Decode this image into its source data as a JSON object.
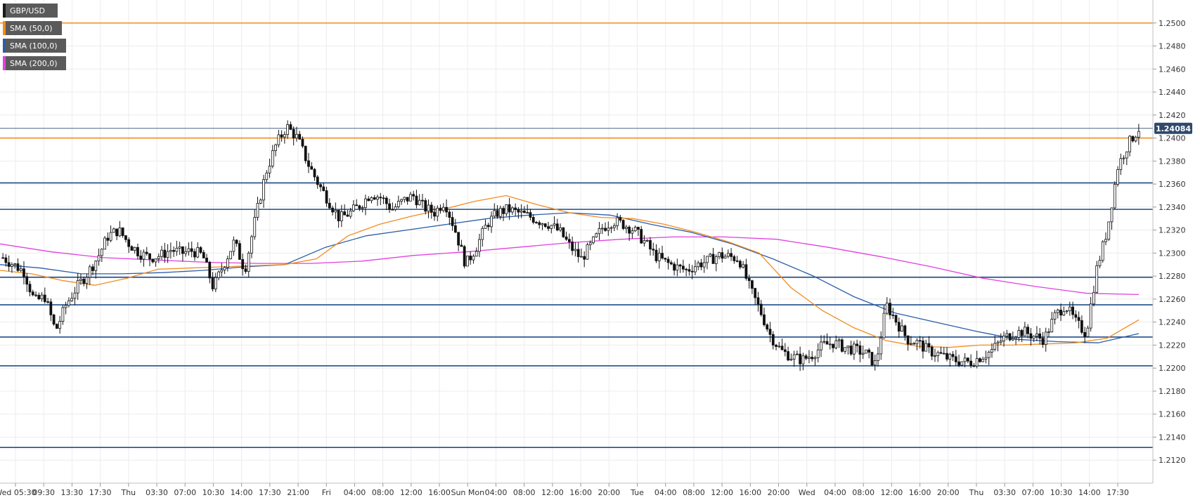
{
  "chart_data": {
    "type": "candlestick",
    "title": "GBP/USD",
    "ylim": [
      1.21,
      1.252
    ],
    "y_ticks": [
      "1.2120",
      "1.2140",
      "1.2160",
      "1.2180",
      "1.2200",
      "1.2220",
      "1.2240",
      "1.2260",
      "1.2280",
      "1.2300",
      "1.2320",
      "1.2340",
      "1.2360",
      "1.2380",
      "1.2400",
      "1.2420",
      "1.2440",
      "1.2460",
      "1.2480",
      "1.2500"
    ],
    "x_ticks": [
      "Wed 05:30",
      "09:30",
      "13:30",
      "17:30",
      "Thu",
      "03:30",
      "07:00",
      "10:30",
      "14:00",
      "17:30",
      "21:00",
      "Fri",
      "04:00",
      "08:00",
      "12:00",
      "16:00",
      "Sun Mon",
      "04:00",
      "08:00",
      "12:00",
      "16:00",
      "20:00",
      "Tue",
      "04:00",
      "08:00",
      "12:00",
      "16:00",
      "20:00",
      "Wed",
      "04:00",
      "08:00",
      "12:00",
      "16:00",
      "20:00",
      "Thu",
      "03:30",
      "07:00",
      "10:30",
      "14:00",
      "17:30"
    ],
    "grid": true,
    "last_price": "1.24084",
    "legend": [
      {
        "label": "GBP/USD",
        "color": "#1a1a1a"
      },
      {
        "label": "SMA (50,0)",
        "color": "#f28c1e"
      },
      {
        "label": "SMA (100,0)",
        "color": "#2b5ea8"
      },
      {
        "label": "SMA (200,0)",
        "color": "#e040e0"
      }
    ],
    "levels": [
      {
        "value": 1.25,
        "color": "#f28c1e"
      },
      {
        "value": 1.24,
        "color": "#f28c1e"
      },
      {
        "value": 1.2361,
        "color": "#1f4e8c"
      },
      {
        "value": 1.2338,
        "color": "#1f4e8c"
      },
      {
        "value": 1.2279,
        "color": "#1f4e8c"
      },
      {
        "value": 1.2255,
        "color": "#1f4e8c"
      },
      {
        "value": 1.2227,
        "color": "#1f4e8c"
      },
      {
        "value": 1.2202,
        "color": "#1f4e8c"
      },
      {
        "value": 1.2131,
        "color": "#1f4e8c"
      }
    ],
    "price_series": [
      1.2296,
      1.229,
      1.2284,
      1.2258,
      1.2262,
      1.2232,
      1.2255,
      1.227,
      1.2282,
      1.2296,
      1.2315,
      1.232,
      1.2308,
      1.23,
      1.2296,
      1.2298,
      1.2303,
      1.23,
      1.2302,
      1.2298,
      1.227,
      1.229,
      1.231,
      1.2285,
      1.233,
      1.237,
      1.2395,
      1.241,
      1.24,
      1.2378,
      1.236,
      1.2345,
      1.233,
      1.2335,
      1.2342,
      1.2352,
      1.2348,
      1.2338,
      1.2345,
      1.235,
      1.234,
      1.2335,
      1.2345,
      1.232,
      1.229,
      1.2305,
      1.2325,
      1.2335,
      1.2338,
      1.2335,
      1.2332,
      1.2328,
      1.2325,
      1.2318,
      1.2305,
      1.2295,
      1.2308,
      1.2322,
      1.2328,
      1.2325,
      1.232,
      1.231,
      1.2298,
      1.2292,
      1.2288,
      1.2285,
      1.229,
      1.2293,
      1.2298,
      1.2297,
      1.2295,
      1.227,
      1.225,
      1.2228,
      1.2215,
      1.221,
      1.2207,
      1.2212,
      1.222,
      1.2222,
      1.2218,
      1.2216,
      1.2213,
      1.2203,
      1.2255,
      1.224,
      1.2225,
      1.2222,
      1.2215,
      1.2212,
      1.2208,
      1.2206,
      1.2205,
      1.221,
      1.2215,
      1.2225,
      1.223,
      1.2232,
      1.2228,
      1.2225,
      1.2245,
      1.2255,
      1.224,
      1.223,
      1.2286,
      1.232,
      1.2375,
      1.2395,
      1.2408
    ],
    "sma50": [
      1.2285,
      1.2282,
      1.2276,
      1.2272,
      1.2278,
      1.2286,
      1.2287,
      1.2288,
      1.2289,
      1.229,
      1.2295,
      1.2315,
      1.2325,
      1.2332,
      1.2338,
      1.2345,
      1.235,
      1.2342,
      1.2335,
      1.2331,
      1.233,
      1.2325,
      1.2318,
      1.231,
      1.23,
      1.227,
      1.225,
      1.2235,
      1.2224,
      1.2219,
      1.2218,
      1.222,
      1.222,
      1.2221,
      1.2222,
      1.2226,
      1.2242
    ],
    "sma100": [
      1.229,
      1.2287,
      1.2282,
      1.2282,
      1.2283,
      1.2285,
      1.2288,
      1.229,
      1.2305,
      1.2315,
      1.232,
      1.2325,
      1.233,
      1.2333,
      1.2335,
      1.2333,
      1.2325,
      1.2318,
      1.2308,
      1.2295,
      1.228,
      1.2262,
      1.2248,
      1.224,
      1.2232,
      1.2225,
      1.2223,
      1.2222,
      1.223
    ],
    "sma200": [
      1.2308,
      1.2301,
      1.2296,
      1.2294,
      1.2292,
      1.2291,
      1.2291,
      1.2293,
      1.2298,
      1.2301,
      1.2305,
      1.2309,
      1.2312,
      1.2314,
      1.2314,
      1.2312,
      1.2305,
      1.2297,
      1.2288,
      1.2278,
      1.2271,
      1.2265,
      1.2264
    ]
  }
}
